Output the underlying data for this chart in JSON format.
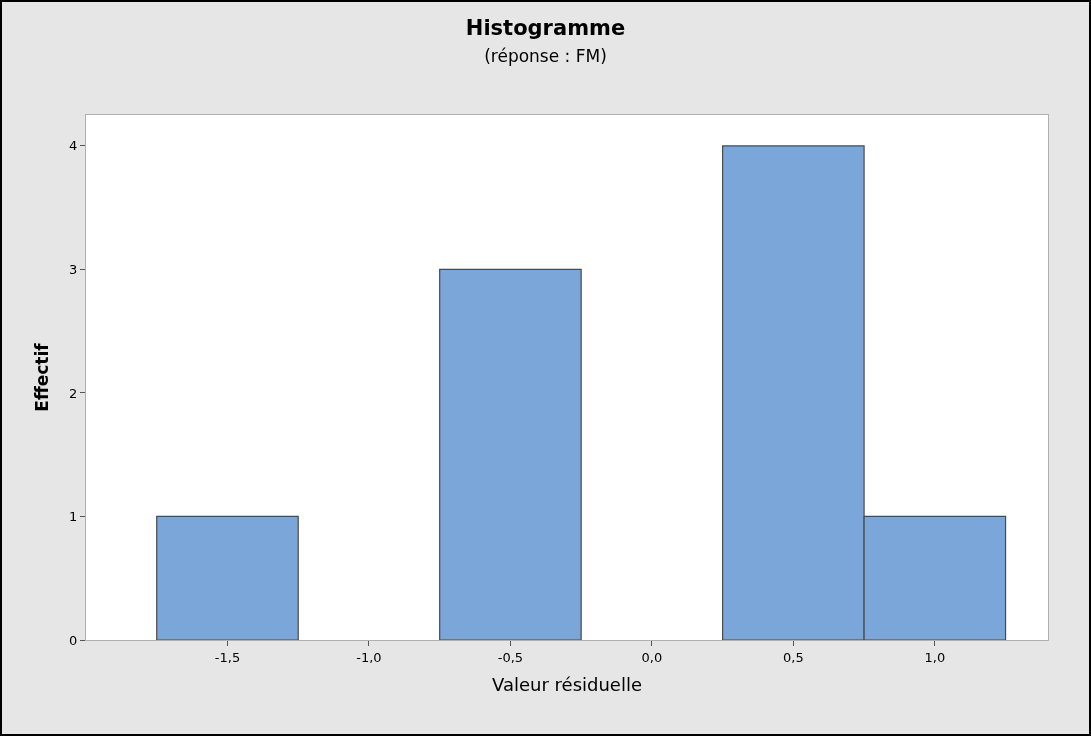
{
  "chart_data": {
    "type": "histogram",
    "title": "Histogramme",
    "subtitle": "(réponse : FM)",
    "xlabel": "Valeur résiduelle",
    "ylabel": "Effectif",
    "bins": [
      -1.75,
      -1.25,
      -0.75,
      -0.25,
      0.25,
      0.75,
      1.25
    ],
    "values": [
      1,
      0,
      3,
      0,
      4,
      1
    ],
    "color": "#7ba6d9",
    "xlim": [
      -2.0,
      1.4
    ],
    "xticks": [
      {
        "value": -1.5,
        "label": "-1,5"
      },
      {
        "value": -1.0,
        "label": "-1,0"
      },
      {
        "value": -0.5,
        "label": "-0,5"
      },
      {
        "value": 0.0,
        "label": "0,0"
      },
      {
        "value": 0.5,
        "label": "0,5"
      },
      {
        "value": 1.0,
        "label": "1,0"
      }
    ],
    "ylim": [
      0,
      4.25
    ],
    "yticks": [
      0,
      1,
      2,
      3,
      4
    ],
    "grid": false
  }
}
